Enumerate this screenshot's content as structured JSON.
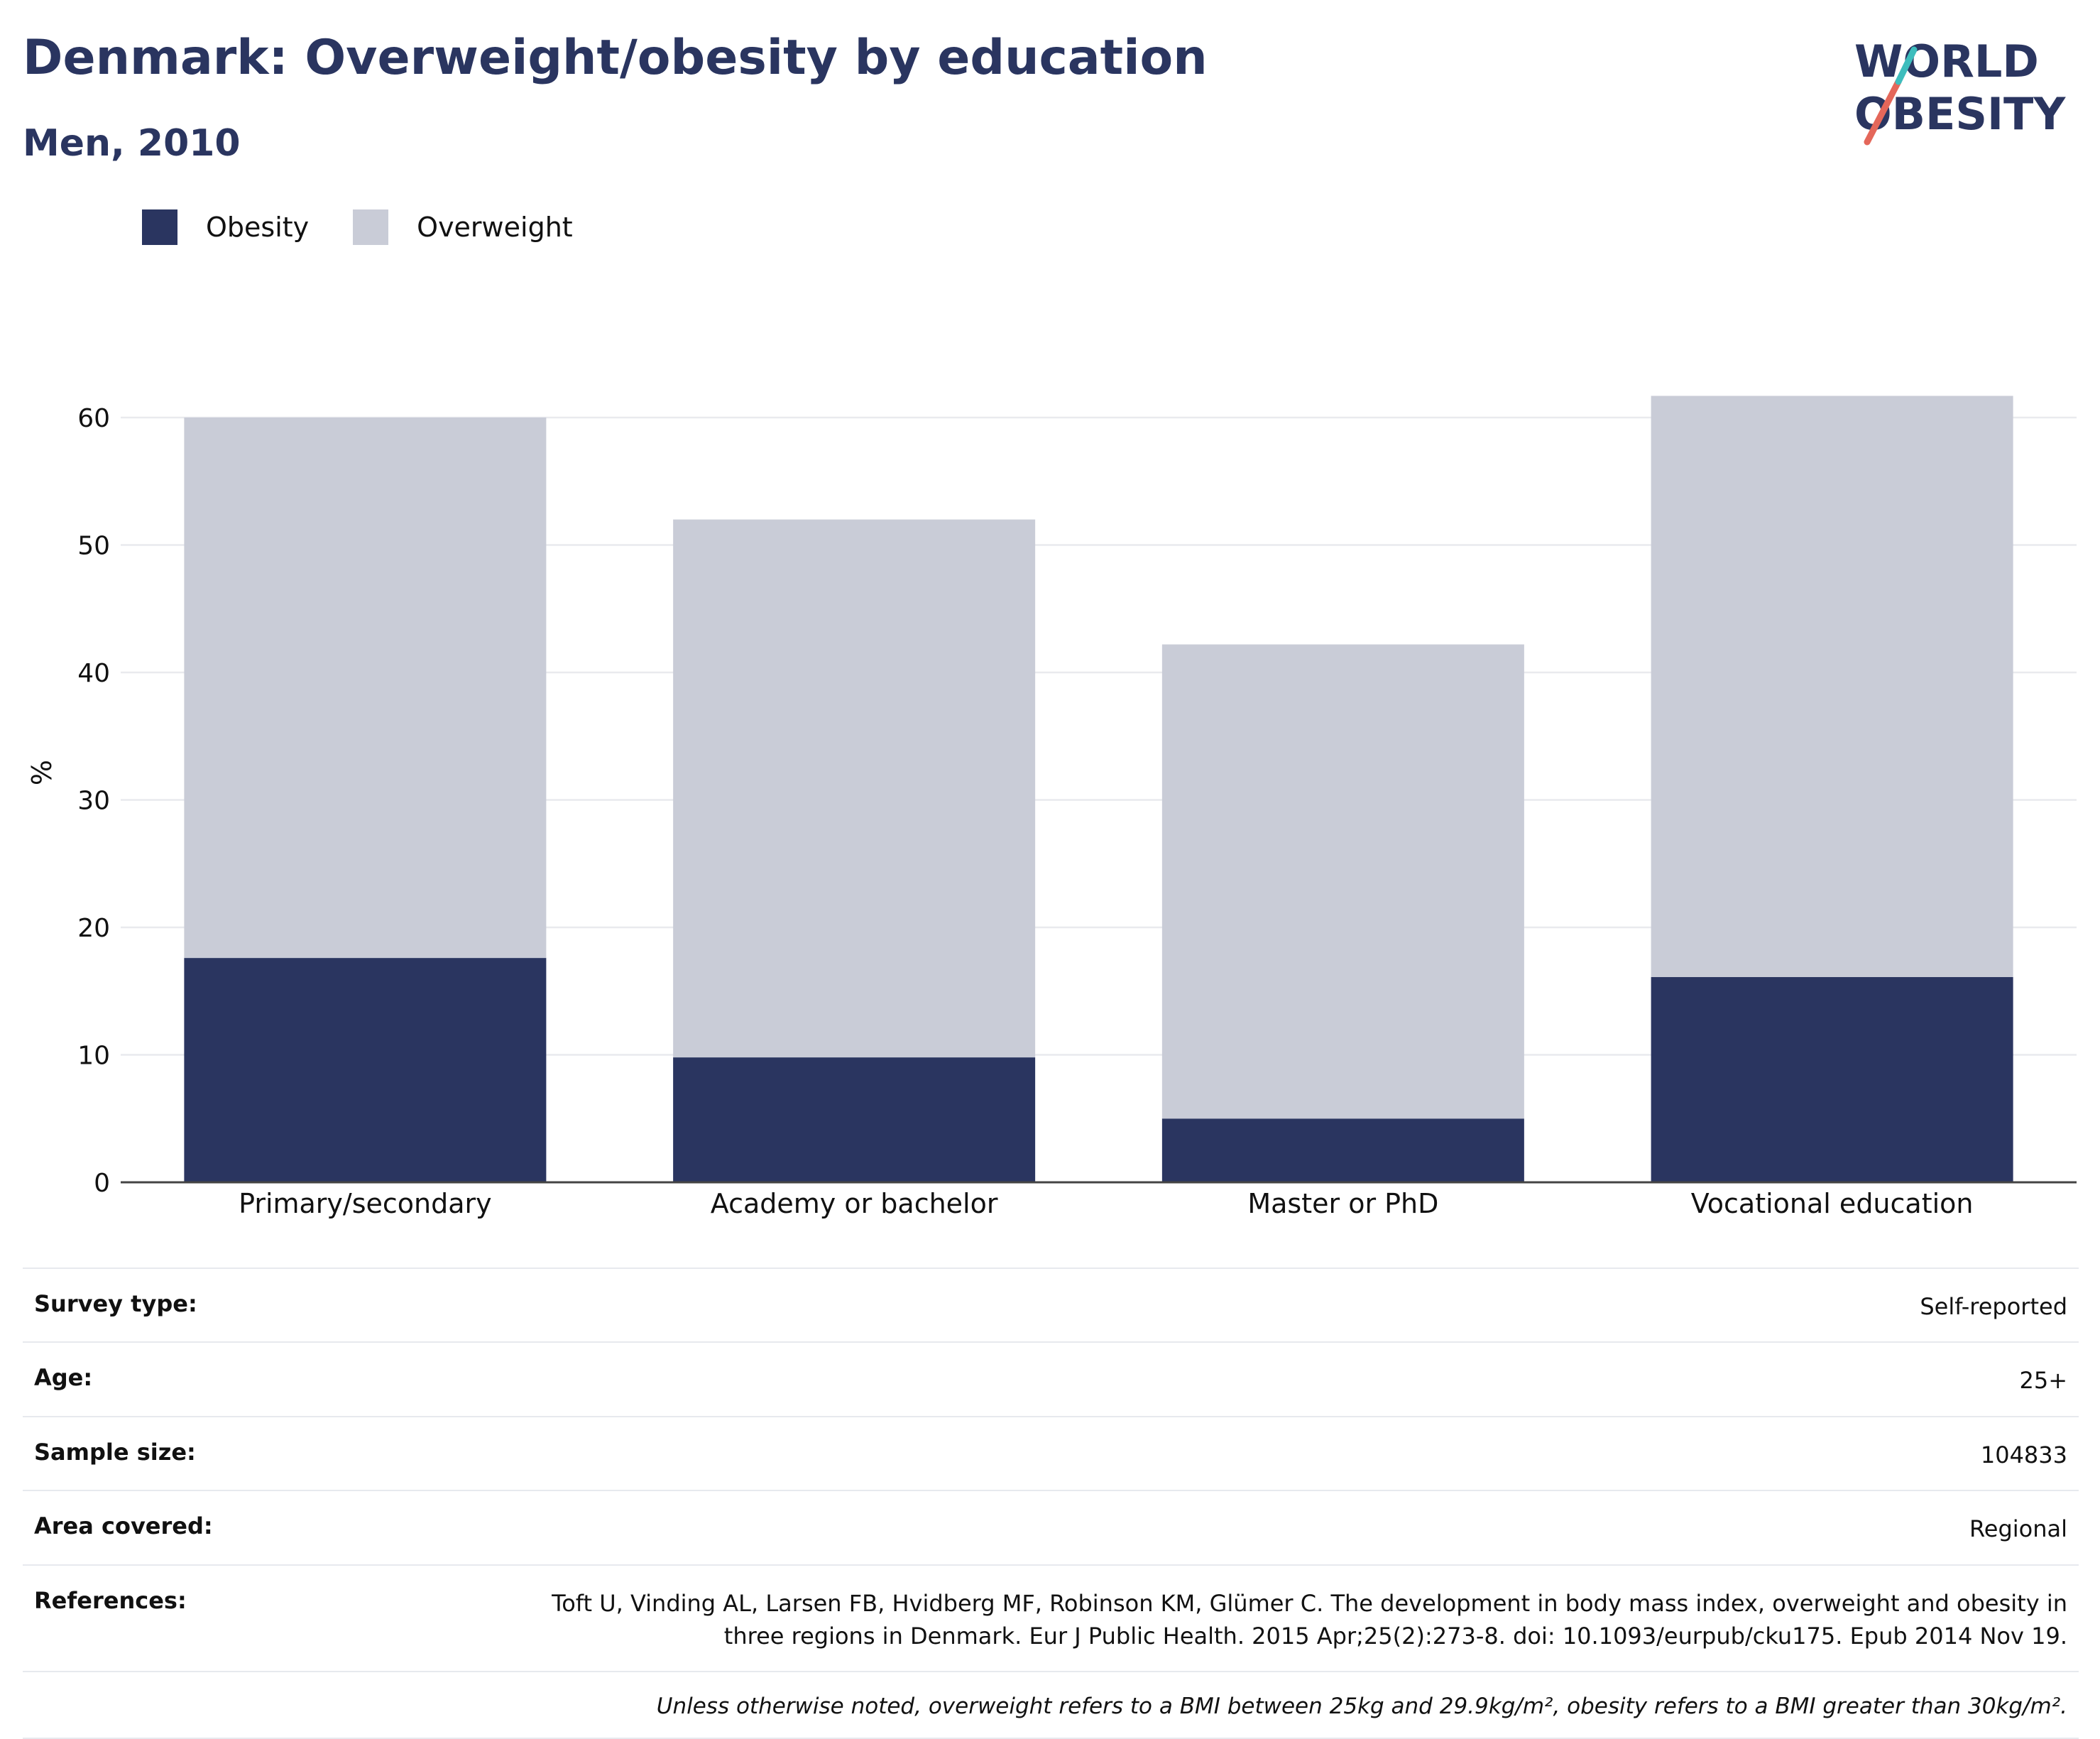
{
  "header": {
    "title": "Denmark: Overweight/obesity by education",
    "subtitle": "Men, 2010"
  },
  "logo": {
    "line1": "WORLD",
    "line2": "OBESITY",
    "colors": {
      "text": "#2a3560",
      "slash_red": "#e4675a",
      "slash_teal": "#3dbdbd"
    }
  },
  "legend": {
    "items": [
      {
        "label": "Obesity",
        "color": "#2a3560"
      },
      {
        "label": "Overweight",
        "color": "#c9ccd7"
      }
    ]
  },
  "chart_data": {
    "type": "bar",
    "stacked": true,
    "categories": [
      "Primary/secondary",
      "Academy or bachelor",
      "Master or PhD",
      "Vocational education"
    ],
    "series": [
      {
        "name": "Obesity",
        "color": "#2a3560",
        "values": [
          17.6,
          9.8,
          5.0,
          16.1
        ]
      },
      {
        "name": "Overweight",
        "color": "#c9ccd7",
        "values": [
          42.4,
          42.2,
          37.2,
          45.6
        ]
      }
    ],
    "title": "Denmark: Overweight/obesity by education",
    "subtitle": "Men, 2010",
    "xlabel": "",
    "ylabel": "%",
    "ylim": [
      0,
      63
    ],
    "yticks": [
      0,
      10,
      20,
      30,
      40,
      50,
      60
    ],
    "grid": true,
    "legend_position": "top-left"
  },
  "meta": {
    "rows": [
      {
        "label": "Survey type:",
        "value": "Self-reported"
      },
      {
        "label": "Age:",
        "value": "25+"
      },
      {
        "label": "Sample size:",
        "value": "104833"
      },
      {
        "label": "Area covered:",
        "value": "Regional"
      }
    ],
    "references": {
      "label": "References:",
      "line1": "Toft U, Vinding AL, Larsen FB, Hvidberg MF, Robinson KM, Glümer C. The development in body mass index, overweight and obesity in",
      "line2": "three regions in Denmark. Eur J Public Health. 2015 Apr;25(2):273-8. doi: 10.1093/eurpub/cku175. Epub 2014 Nov 19."
    },
    "note": "Unless otherwise noted, overweight refers to a BMI between 25kg and 29.9kg/m², obesity refers to a BMI greater than 30kg/m²."
  }
}
